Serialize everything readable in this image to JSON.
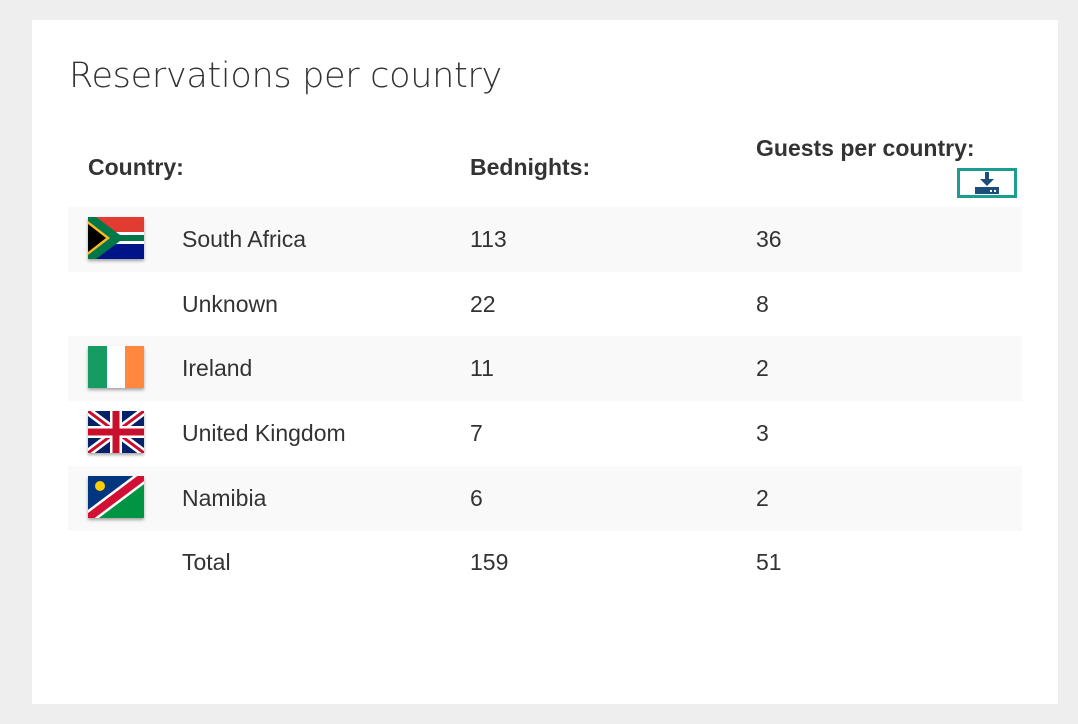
{
  "title": "Reservations per country",
  "headers": {
    "country": "Country:",
    "bednights": "Bednights:",
    "guests": "Guests per country:"
  },
  "download_icon": "download-icon",
  "colors": {
    "download_border": "#1b9e8f",
    "download_icon": "#1d4e7a",
    "row_stripe": "#f9f9f9"
  },
  "rows": [
    {
      "flag": "south-africa-flag-icon",
      "name": "South Africa",
      "bednights": "113",
      "guests": "36"
    },
    {
      "flag": "",
      "name": "Unknown",
      "bednights": "22",
      "guests": "8"
    },
    {
      "flag": "ireland-flag-icon",
      "name": "Ireland",
      "bednights": "11",
      "guests": "2"
    },
    {
      "flag": "united-kingdom-flag-icon",
      "name": "United Kingdom",
      "bednights": "7",
      "guests": "3"
    },
    {
      "flag": "namibia-flag-icon",
      "name": "Namibia",
      "bednights": "6",
      "guests": "2"
    },
    {
      "flag": "",
      "name": "Total",
      "bednights": "159",
      "guests": "51"
    }
  ]
}
